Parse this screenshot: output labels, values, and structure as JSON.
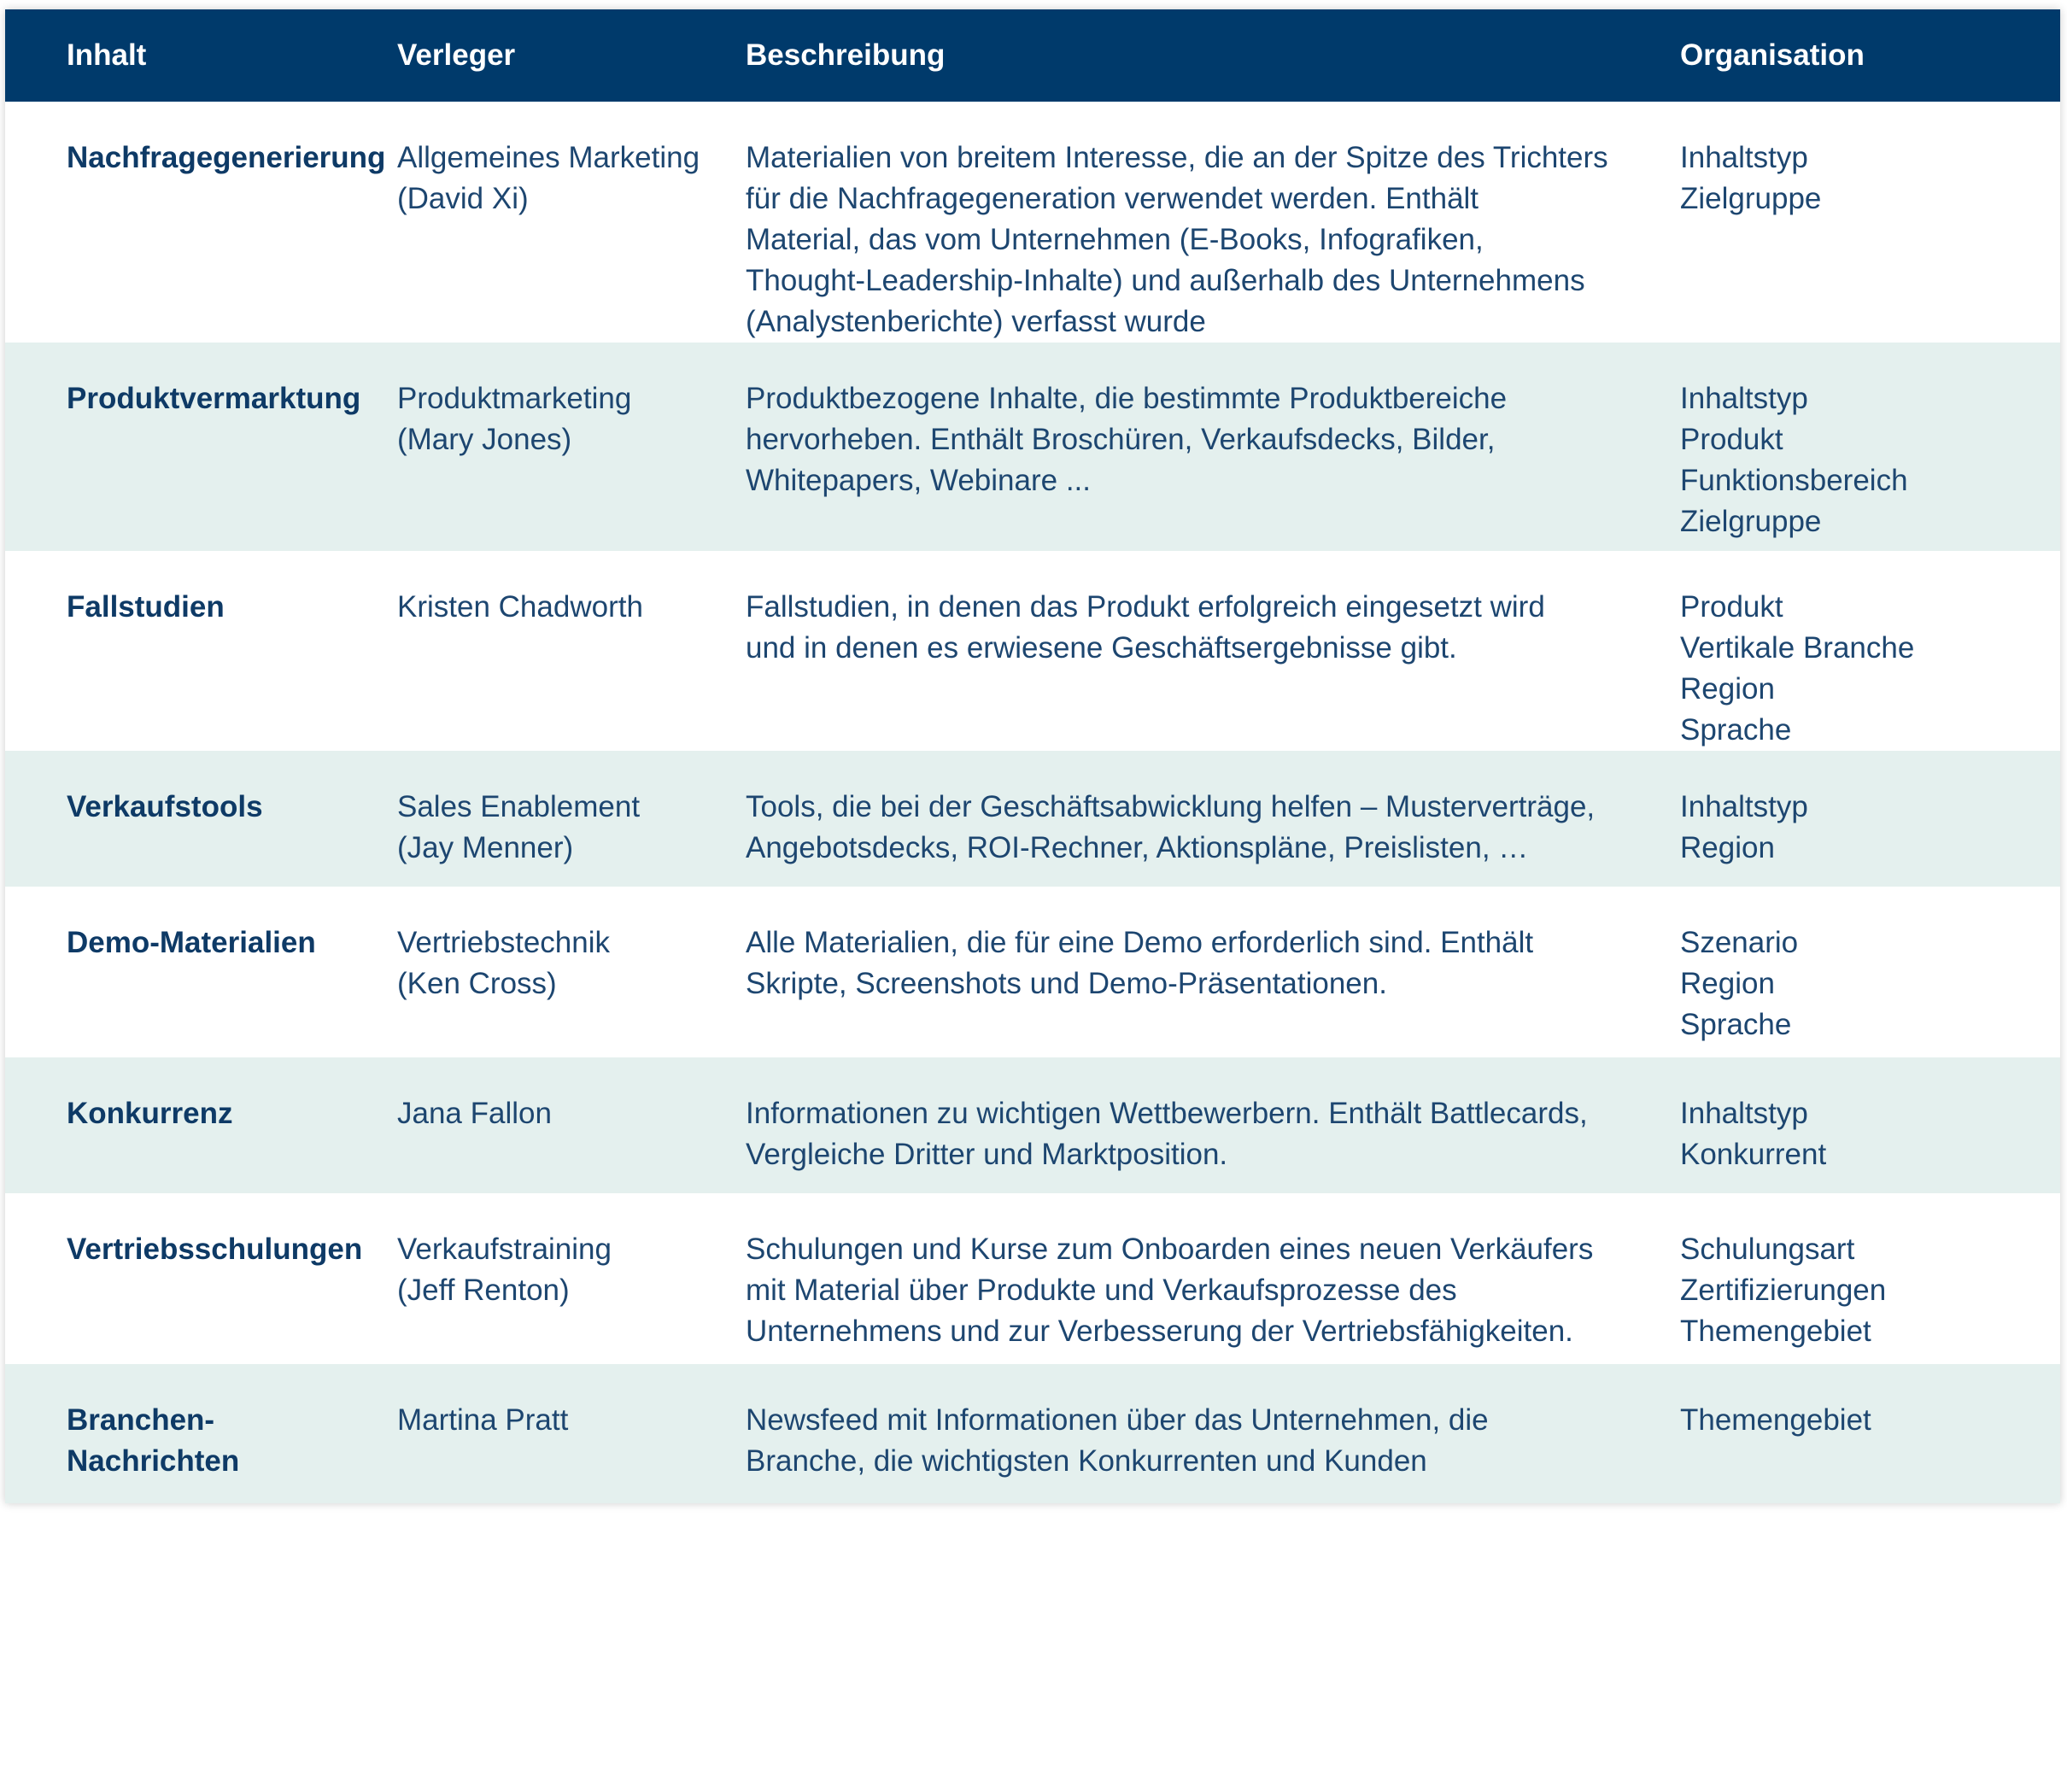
{
  "header": {
    "content": "Inhalt",
    "publisher": "Verleger",
    "description": "Beschreibung",
    "organization": "Organisation"
  },
  "rows": [
    {
      "content": "Nachfragegenerierung",
      "publisher": [
        "Allgemeines Marketing",
        "(David Xi)"
      ],
      "description": [
        "Materialien von breitem Interesse, die an der Spitze des Trichters",
        "für die Nachfragegeneration verwendet werden. Enthält",
        "Material, das vom Unternehmen (E-Books, Infografiken,",
        "Thought-Leadership-Inhalte) und außerhalb des Unternehmens",
        "(Analystenberichte) verfasst wurde"
      ],
      "organization": [
        "Inhaltstyp",
        "Zielgruppe"
      ]
    },
    {
      "content": "Produktvermarktung",
      "publisher": [
        "Produktmarketing",
        "(Mary Jones)"
      ],
      "description": [
        "Produktbezogene Inhalte, die bestimmte Produktbereiche",
        "hervorheben. Enthält Broschüren, Verkaufsdecks, Bilder,",
        "Whitepapers, Webinare ..."
      ],
      "organization": [
        "Inhaltstyp",
        "Produkt",
        "Funktionsbereich",
        "Zielgruppe"
      ]
    },
    {
      "content": "Fallstudien",
      "publisher": [
        "Kristen Chadworth"
      ],
      "description": [
        "Fallstudien, in denen das Produkt erfolgreich eingesetzt wird",
        "und in denen es erwiesene Geschäftsergebnisse gibt."
      ],
      "organization": [
        "Produkt",
        "Vertikale Branche",
        "Region",
        "Sprache"
      ]
    },
    {
      "content": "Verkaufstools",
      "publisher": [
        "Sales Enablement",
        "(Jay Menner)"
      ],
      "description": [
        "Tools, die bei der Geschäftsabwicklung helfen – Musterverträge,",
        "Angebotsdecks, ROI-Rechner, Aktionspläne, Preislisten, …"
      ],
      "organization": [
        "Inhaltstyp",
        "Region"
      ]
    },
    {
      "content": "Demo-Materialien",
      "publisher": [
        "Vertriebstechnik",
        "(Ken Cross)"
      ],
      "description": [
        "Alle Materialien, die für eine Demo erforderlich sind. Enthält",
        "Skripte, Screenshots und Demo-Präsentationen."
      ],
      "organization": [
        "Szenario",
        "Region",
        "Sprache"
      ]
    },
    {
      "content": "Konkurrenz",
      "publisher": [
        "Jana Fallon"
      ],
      "description": [
        "Informationen zu wichtigen Wettbewerbern. Enthält Battlecards,",
        "Vergleiche Dritter und Marktposition."
      ],
      "organization": [
        "Inhaltstyp",
        "Konkurrent"
      ]
    },
    {
      "content": "Vertriebsschulungen",
      "publisher": [
        "Verkaufstraining",
        "(Jeff Renton)"
      ],
      "description": [
        "Schulungen und Kurse zum Onboarden eines neuen Verkäufers",
        "mit Material über Produkte und Verkaufsprozesse des",
        "Unternehmens und zur Verbesserung der Vertriebsfähigkeiten."
      ],
      "organization": [
        "Schulungsart",
        "Zertifizierungen",
        "Themengebiet"
      ]
    },
    {
      "content": "Branchen-Nachrichten",
      "publisher": [
        "Martina Pratt"
      ],
      "description": [
        "Newsfeed mit Informationen über das Unternehmen, die",
        "Branche, die wichtigsten Konkurrenten und Kunden"
      ],
      "organization": [
        "Themengebiet"
      ]
    }
  ]
}
